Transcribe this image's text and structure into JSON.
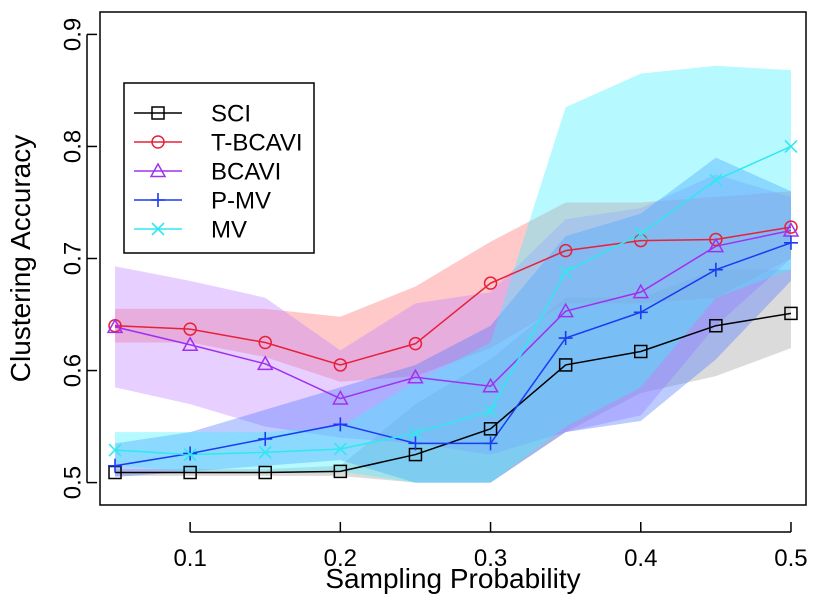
{
  "chart_data": {
    "type": "line",
    "title": "",
    "xlabel": "Sampling Probability",
    "ylabel": "Clustering Accuracy",
    "xlim": [
      0.04,
      0.51
    ],
    "ylim": [
      0.48,
      0.92
    ],
    "x": [
      0.05,
      0.1,
      0.15,
      0.2,
      0.25,
      0.3,
      0.35,
      0.4,
      0.45,
      0.5
    ],
    "xticks": [
      0.1,
      0.2,
      0.3,
      0.4,
      0.5
    ],
    "xtick_labels": [
      "0.1",
      "0.2",
      "0.3",
      "0.4",
      "0.5"
    ],
    "yticks": [
      0.5,
      0.6,
      0.7,
      0.8,
      0.9
    ],
    "ytick_labels": [
      "0.5",
      "0.6",
      "0.7",
      "0.8",
      "0.9"
    ],
    "legend_position": "top-left",
    "series": [
      {
        "name": "SCI",
        "color": "#000000",
        "band_color": "#a0a0a0",
        "marker": "square",
        "values": [
          0.509,
          0.509,
          0.509,
          0.51,
          0.525,
          0.548,
          0.605,
          0.617,
          0.64,
          0.651
        ],
        "lower": [
          0.506,
          0.506,
          0.506,
          0.506,
          0.5,
          0.5,
          0.545,
          0.58,
          0.595,
          0.62
        ],
        "upper": [
          0.512,
          0.512,
          0.512,
          0.515,
          0.57,
          0.61,
          0.665,
          0.665,
          0.69,
          0.69
        ]
      },
      {
        "name": "T-BCAVI",
        "color": "#e8203a",
        "band_color": "#ff7070",
        "marker": "circle",
        "values": [
          0.64,
          0.637,
          0.625,
          0.605,
          0.624,
          0.678,
          0.707,
          0.716,
          0.717,
          0.728
        ],
        "lower": [
          0.625,
          0.625,
          0.612,
          0.59,
          0.595,
          0.62,
          0.66,
          0.66,
          0.665,
          0.7
        ],
        "upper": [
          0.655,
          0.655,
          0.655,
          0.648,
          0.675,
          0.715,
          0.75,
          0.75,
          0.755,
          0.76
        ]
      },
      {
        "name": "BCAVI",
        "color": "#a030f0",
        "band_color": "#c080ff",
        "marker": "triangle",
        "values": [
          0.639,
          0.623,
          0.606,
          0.575,
          0.594,
          0.586,
          0.653,
          0.67,
          0.711,
          0.725
        ],
        "lower": [
          0.585,
          0.57,
          0.55,
          0.54,
          0.535,
          0.525,
          0.545,
          0.56,
          0.64,
          0.7
        ],
        "upper": [
          0.693,
          0.68,
          0.665,
          0.618,
          0.66,
          0.67,
          0.735,
          0.745,
          0.775,
          0.755
        ]
      },
      {
        "name": "P-MV",
        "color": "#1a3cf0",
        "band_color": "#5078ff",
        "marker": "plus",
        "values": [
          0.515,
          0.526,
          0.539,
          0.552,
          0.535,
          0.535,
          0.629,
          0.652,
          0.69,
          0.714
        ],
        "lower": [
          0.505,
          0.51,
          0.515,
          0.52,
          0.5,
          0.5,
          0.545,
          0.555,
          0.61,
          0.68
        ],
        "upper": [
          0.535,
          0.545,
          0.565,
          0.585,
          0.605,
          0.64,
          0.72,
          0.74,
          0.79,
          0.76
        ]
      },
      {
        "name": "MV",
        "color": "#30e8f0",
        "band_color": "#40f0ff",
        "marker": "x",
        "values": [
          0.529,
          0.525,
          0.527,
          0.53,
          0.544,
          0.564,
          0.688,
          0.722,
          0.77,
          0.8
        ],
        "lower": [
          0.515,
          0.51,
          0.51,
          0.51,
          0.5,
          0.5,
          0.55,
          0.585,
          0.665,
          0.69
        ],
        "upper": [
          0.545,
          0.545,
          0.545,
          0.55,
          0.59,
          0.625,
          0.835,
          0.865,
          0.872,
          0.868
        ]
      }
    ]
  }
}
